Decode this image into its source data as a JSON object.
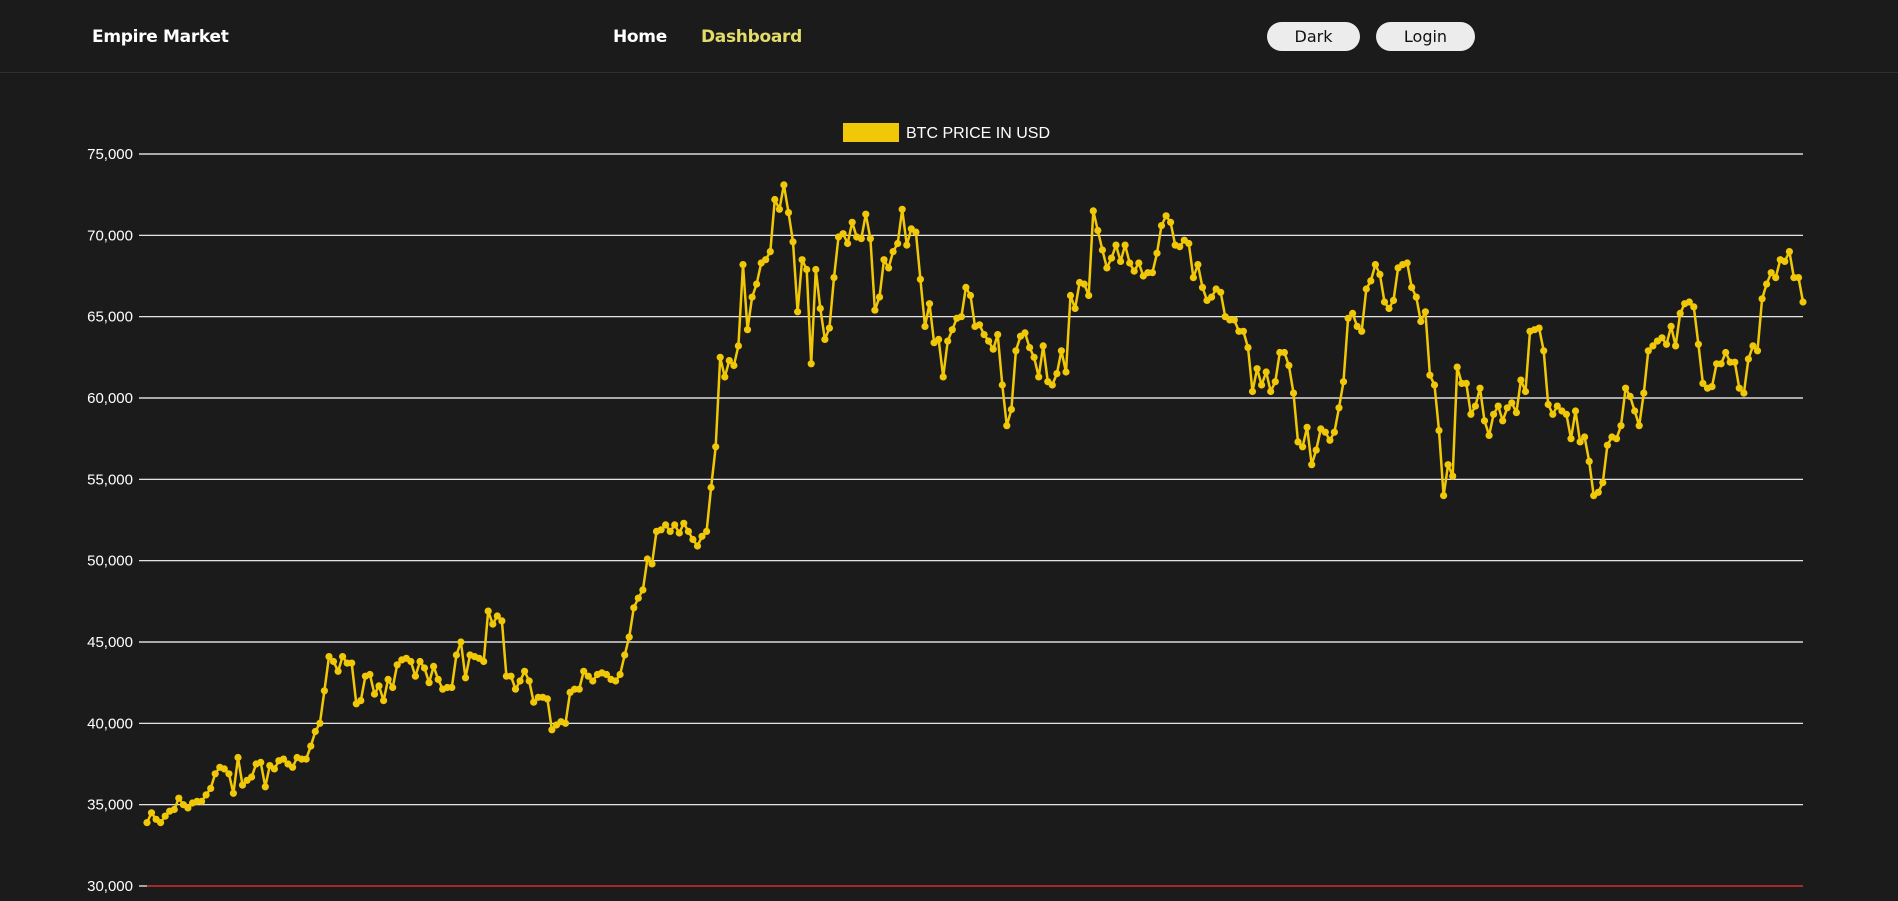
{
  "navbar": {
    "brand": "Empire Market",
    "links": [
      {
        "label": "Home",
        "active": false
      },
      {
        "label": "Dashboard",
        "active": true
      }
    ],
    "buttons": {
      "theme_label": "Dark",
      "login_label": "Login"
    }
  },
  "colors": {
    "background": "#1b1b1b",
    "accent_active_link": "#e3db6a",
    "series_line": "#f0c808",
    "grid": "#ffffff",
    "baseline": "#d32f2f"
  },
  "chart_data": {
    "type": "line",
    "title": "",
    "xlabel": "",
    "ylabel": "",
    "legend_position": "top-center",
    "grid": true,
    "ylim": [
      30000,
      75000
    ],
    "y_ticks": [
      "75,000",
      "70,000",
      "65,000",
      "60,000",
      "55,000",
      "50,000",
      "45,000",
      "40,000",
      "35,000",
      "30,000"
    ],
    "series": [
      {
        "name": "BTC PRICE IN USD",
        "values": [
          33900,
          34500,
          34100,
          33900,
          34300,
          34600,
          34700,
          35400,
          35000,
          34800,
          35100,
          35200,
          35200,
          35600,
          36000,
          36900,
          37300,
          37200,
          36900,
          35700,
          37900,
          36200,
          36500,
          36700,
          37500,
          37600,
          36100,
          37400,
          37200,
          37700,
          37800,
          37500,
          37300,
          37900,
          37800,
          37800,
          38600,
          39500,
          40000,
          42000,
          44100,
          43800,
          43200,
          44100,
          43700,
          43700,
          41200,
          41400,
          42900,
          43000,
          41800,
          42300,
          41400,
          42700,
          42200,
          43600,
          43900,
          44000,
          43800,
          42900,
          43800,
          43400,
          42500,
          43500,
          42700,
          42100,
          42200,
          42200,
          44200,
          45000,
          42800,
          44200,
          44100,
          44000,
          43800,
          46900,
          46100,
          46600,
          46300,
          42900,
          42900,
          42100,
          42600,
          43200,
          42600,
          41300,
          41600,
          41600,
          41500,
          39600,
          39900,
          40100,
          40000,
          41900,
          42100,
          42100,
          43200,
          42900,
          42600,
          43000,
          43100,
          43000,
          42700,
          42600,
          43000,
          44200,
          45300,
          47100,
          47700,
          48200,
          50100,
          49800,
          51800,
          51900,
          52200,
          51800,
          52200,
          51700,
          52300,
          51800,
          51300,
          50900,
          51500,
          51800,
          54500,
          57000,
          62500,
          61300,
          62300,
          62000,
          63200,
          68200,
          64200,
          66200,
          67000,
          68300,
          68500,
          69000,
          72200,
          71600,
          73100,
          71400,
          69600,
          65300,
          68500,
          67900,
          62100,
          67900,
          65500,
          63600,
          64300,
          67400,
          69900,
          70100,
          69500,
          70800,
          69900,
          69800,
          71300,
          69800,
          65400,
          66200,
          68500,
          68000,
          69000,
          69500,
          71600,
          69400,
          70400,
          70200,
          67300,
          64400,
          65800,
          63400,
          63600,
          61300,
          63500,
          64200,
          64900,
          65000,
          66800,
          66300,
          64400,
          64500,
          63900,
          63500,
          63000,
          63900,
          60800,
          58300,
          59300,
          62900,
          63800,
          64000,
          63100,
          62500,
          61300,
          63200,
          61000,
          60800,
          61500,
          62900,
          61600,
          66300,
          65500,
          67100,
          67000,
          66300,
          71500,
          70300,
          69100,
          68000,
          68600,
          69400,
          68400,
          69400,
          68300,
          67800,
          68300,
          67500,
          67700,
          67700,
          68900,
          70600,
          71200,
          70800,
          69400,
          69300,
          69700,
          69500,
          67400,
          68200,
          66800,
          66000,
          66200,
          66700,
          66500,
          65000,
          64800,
          64800,
          64100,
          64100,
          63100,
          60400,
          61800,
          60800,
          61600,
          60400,
          61000,
          62800,
          62800,
          62000,
          60300,
          57300,
          57000,
          58200,
          55900,
          56800,
          58100,
          57900,
          57400,
          57900,
          59400,
          61000,
          64900,
          65200,
          64400,
          64100,
          66700,
          67200,
          68200,
          67600,
          65900,
          65500,
          66000,
          68000,
          68200,
          68300,
          66800,
          66200,
          64700,
          65300,
          61400,
          60800,
          58000,
          54000,
          55900,
          55200,
          61900,
          60900,
          60900,
          59000,
          59500,
          60600,
          58600,
          57700,
          59000,
          59500,
          58600,
          59400,
          59700,
          59100,
          61100,
          60400,
          64100,
          64200,
          64300,
          62900,
          59600,
          59000,
          59500,
          59200,
          59000,
          57500,
          59200,
          57300,
          57600,
          56100,
          54000,
          54200,
          54800,
          57100,
          57600,
          57500,
          58300,
          60600,
          60100,
          59200,
          58300,
          60300,
          62900,
          63200,
          63500,
          63700,
          63300,
          64400,
          63200,
          65200,
          65800,
          65900,
          65600,
          63300,
          60900,
          60600,
          60700,
          62100,
          62100,
          62800,
          62200,
          62200,
          60600,
          60300,
          62400,
          63200,
          62900,
          66100,
          67000,
          67700,
          67400,
          68500,
          68400,
          69000,
          67400,
          67400,
          65900
        ]
      }
    ]
  }
}
